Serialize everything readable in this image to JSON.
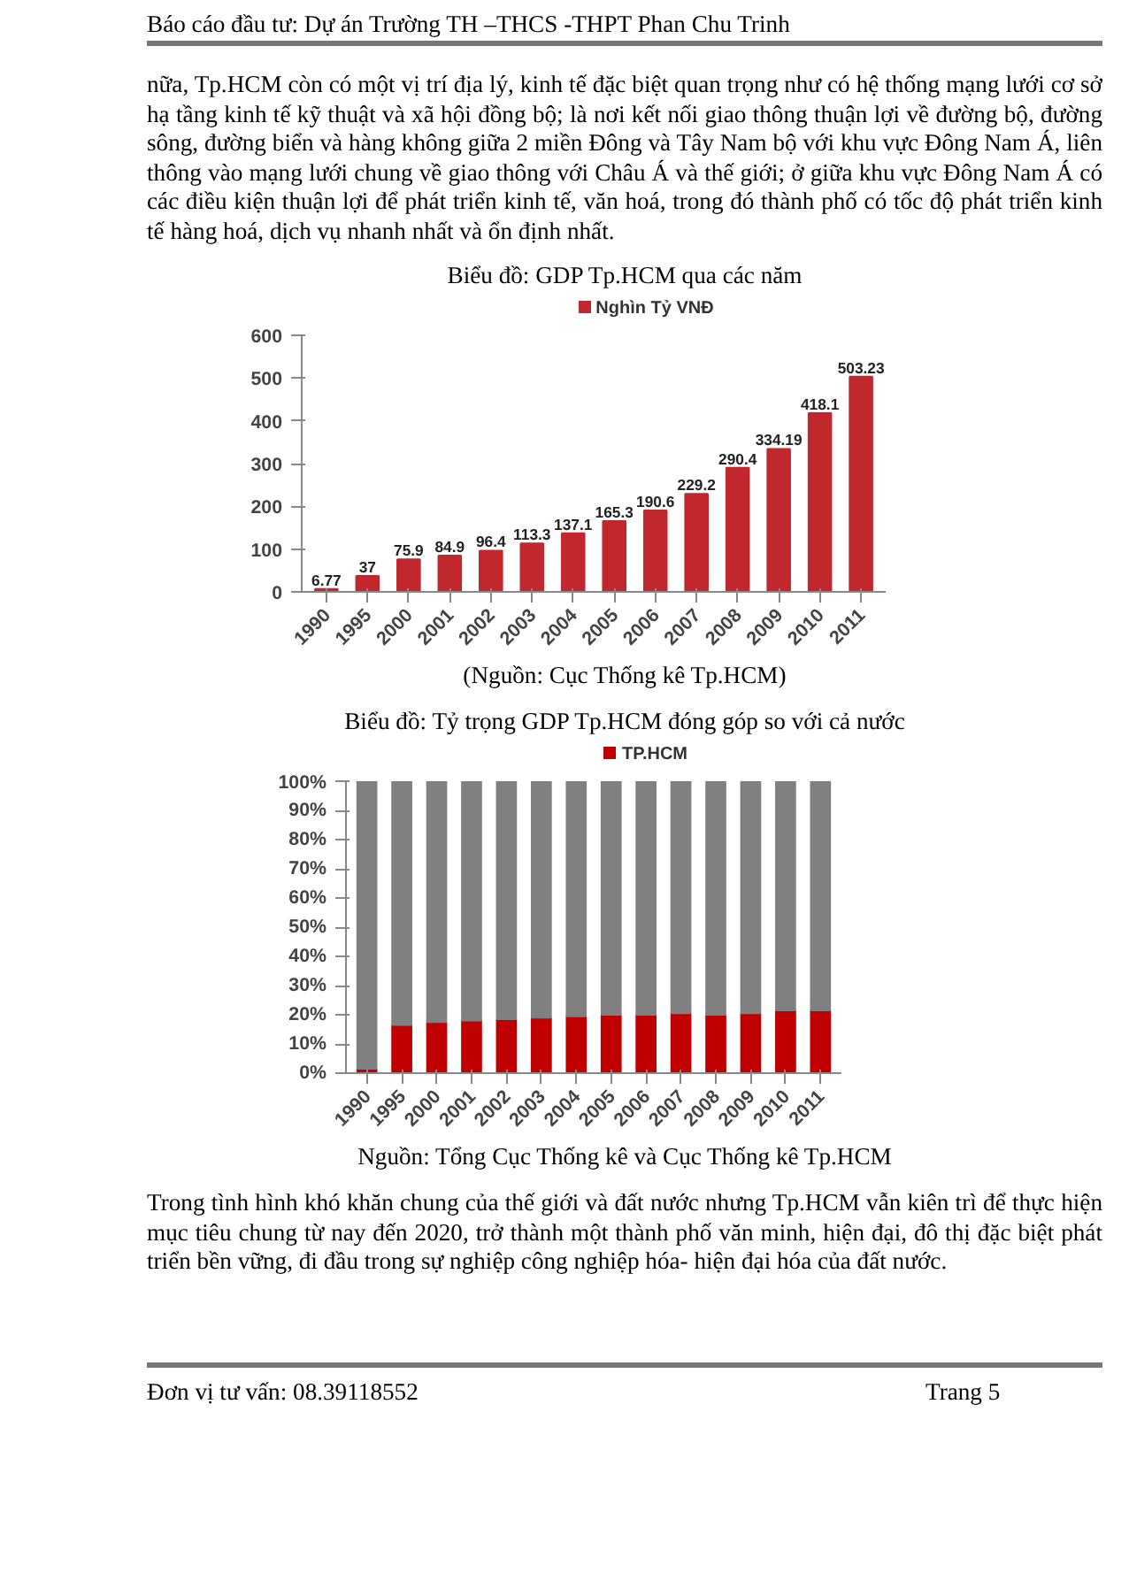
{
  "chart_data": [
    {
      "type": "other",
      "annotations": [
        "Báo cáo đầu tư: Dự án Trường TH –THCS -THPT Phan Chu Trinh",
        "nữa, Tp.HCM còn có một vị trí địa lý, kinh tế đặc biệt quan trọng như có hệ thống mạng lưới cơ sở hạ tầng kinh tế kỹ thuật và xã hội đồng bộ; là nơi kết nối giao thông thuận lợi về đường bộ, đường sông, đường biển và hàng không giữa 2 miền Đông và Tây Nam bộ với khu vực Đông Nam Á, liên thông vào mạng lưới chung về giao thông với Châu Á và thế giới; ở giữa khu vực Đông Nam Á có các điều kiện thuận lợi để phát triển kinh tế, văn hoá, trong đó thành phố có tốc độ phát triển kinh tế hàng hoá, dịch vụ nhanh nhất và ổn định nhất."
      ]
    },
    {
      "type": "bar",
      "title": "Biểu đồ: GDP Tp.HCM qua các năm",
      "categories": [
        "1990",
        "1995",
        "2000",
        "2001",
        "2002",
        "2003",
        "2004",
        "2005",
        "2006",
        "2007",
        "2008",
        "2009",
        "2010",
        "2011"
      ],
      "series": [
        {
          "name": "Nghìn Tỷ VNĐ",
          "color": "#c0282d",
          "values": [
            6.77,
            37,
            75.9,
            84.9,
            96.4,
            113.3,
            137.1,
            165.3,
            190.6,
            229.2,
            290.4,
            334.19,
            418.1,
            503.23
          ]
        }
      ],
      "ylim": [
        0,
        600
      ],
      "yticks": [
        0,
        100,
        200,
        300,
        400,
        500,
        600
      ],
      "data_labels": true,
      "legend": "top",
      "grid": false,
      "annotations": [
        "(Nguồn: Cục Thống kê Tp.HCM)"
      ]
    },
    {
      "type": "bar",
      "title": "Biểu đồ: Tỷ trọng GDP Tp.HCM đóng góp so với cả nước",
      "categories": [
        "1990",
        "1995",
        "2000",
        "2001",
        "2002",
        "2003",
        "2004",
        "2005",
        "2006",
        "2007",
        "2008",
        "2009",
        "2010",
        "2011"
      ],
      "stacked": true,
      "series": [
        {
          "name": "TP.HCM",
          "color": "#c00000",
          "values": [
            1.5,
            16.5,
            17.5,
            18,
            18.5,
            19,
            19.5,
            20,
            20,
            20.5,
            20,
            20.5,
            21.5,
            21.5
          ]
        },
        {
          "color": "#808080",
          "values": [
            98.5,
            83.5,
            82.5,
            82,
            81.5,
            81,
            80.5,
            80,
            80,
            79.5,
            80,
            79.5,
            78.5,
            78.5
          ]
        }
      ],
      "ylim": [
        0,
        100
      ],
      "yticks": [
        {
          "value": 0,
          "label": "0%"
        },
        {
          "value": 10,
          "label": "10%"
        },
        {
          "value": 20,
          "label": "20%"
        },
        {
          "value": 30,
          "label": "30%"
        },
        {
          "value": 40,
          "label": "40%"
        },
        {
          "value": 50,
          "label": "50%"
        },
        {
          "value": 60,
          "label": "60%"
        },
        {
          "value": 70,
          "label": "70%"
        },
        {
          "value": 80,
          "label": "80%"
        },
        {
          "value": 90,
          "label": "90%"
        },
        {
          "value": 100,
          "label": "100%"
        }
      ],
      "legend": "top",
      "grid": false,
      "annotations": [
        "Nguồn: Tổng Cục Thống kê và Cục Thống kê Tp.HCM",
        "Trong tình hình khó khăn chung của thế giới và đất nước nhưng Tp.HCM vẫn kiên trì để thực hiện mục tiêu chung từ nay đến 2020, trở thành một thành phố văn minh, hiện đại, đô thị đặc biệt phát triển bền vững, đi đầu trong sự nghiệp công nghiệp hóa- hiện đại hóa của đất nước."
      ]
    },
    {
      "type": "other",
      "annotations": [
        "Đơn vị tư vấn: 08.39118552",
        "Trang 5"
      ]
    }
  ]
}
